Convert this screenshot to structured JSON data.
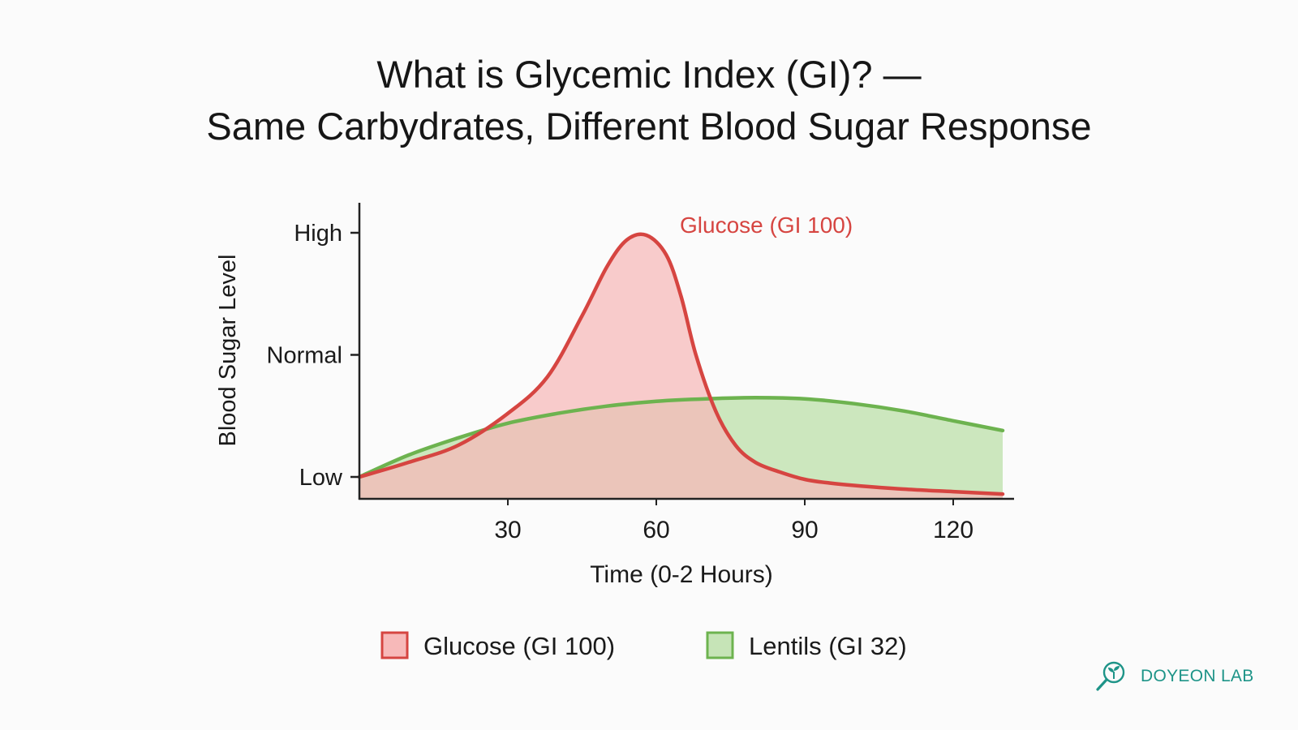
{
  "title_line1": "What is Glycemic Index (GI)? —",
  "title_line2": "Same Carbydrates, Different Blood Sugar Response",
  "brand": {
    "name": "DOYEON LAB",
    "icon": "magnifier-sprout-icon",
    "color": "#1e9488"
  },
  "chart_data": {
    "type": "area",
    "xlabel": "Time (0-2 Hours)",
    "ylabel": "Blood Sugar Level",
    "xlim": [
      0,
      130
    ],
    "ylim": [
      0,
      1
    ],
    "xticks": [
      30,
      60,
      90,
      120
    ],
    "xtick_labels": [
      "30",
      "60",
      "90",
      "120"
    ],
    "yticks": [
      0,
      0.5,
      1
    ],
    "ytick_labels": [
      "Low",
      "Normal",
      "High"
    ],
    "grid": false,
    "legend_position": "bottom",
    "series": [
      {
        "name": "Glucose (GI 100)",
        "color": "#d64541",
        "fill": "#f7b9b9",
        "annotation": "Glucose (GI 100)",
        "x": [
          0,
          10,
          20,
          30,
          38,
          45,
          50,
          54,
          58,
          62,
          65,
          68,
          72,
          76,
          80,
          85,
          90,
          95,
          100,
          110,
          120,
          130
        ],
        "y": [
          0.0,
          0.06,
          0.13,
          0.26,
          0.41,
          0.66,
          0.86,
          0.97,
          0.99,
          0.91,
          0.74,
          0.5,
          0.27,
          0.13,
          0.06,
          0.02,
          -0.01,
          -0.025,
          -0.035,
          -0.05,
          -0.06,
          -0.07
        ]
      },
      {
        "name": "Lentils (GI 32)",
        "color": "#6db34f",
        "fill": "#c6e4b7",
        "x": [
          0,
          10,
          20,
          30,
          40,
          50,
          60,
          70,
          80,
          90,
          100,
          110,
          120,
          130
        ],
        "y": [
          0.0,
          0.09,
          0.16,
          0.22,
          0.26,
          0.29,
          0.31,
          0.32,
          0.325,
          0.32,
          0.3,
          0.27,
          0.23,
          0.19
        ]
      }
    ]
  }
}
